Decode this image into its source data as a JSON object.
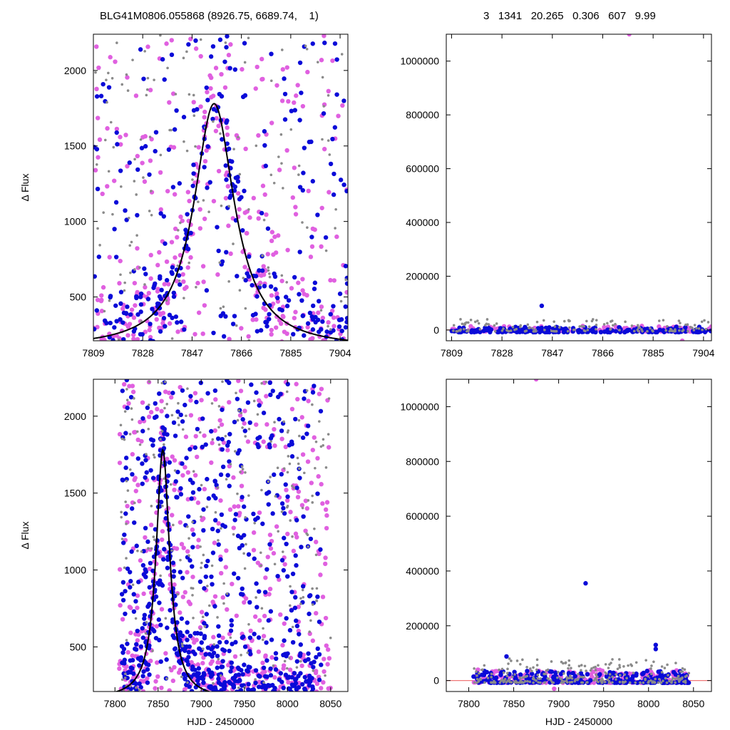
{
  "header": {
    "left_text": "BLG41M0806.055868 (8926.75, 6689.74,    1)",
    "right_text": "3   1341   20.265   0.306   607   9.99"
  },
  "colors": {
    "series_a": "#e060e0",
    "series_b": "#0a0ad8",
    "series_c": "#8a8a8a",
    "model": "#000000",
    "zero_line": "#f07878"
  },
  "chart_data": [
    {
      "id": "top-left",
      "type": "scatter",
      "xlabel": "",
      "ylabel": "Δ Flux",
      "xlim": [
        7809,
        7907
      ],
      "ylim": [
        210,
        2240
      ],
      "x_ticks": [
        7809,
        7828,
        7847,
        7866,
        7885,
        7904
      ],
      "y_ticks": [
        500,
        1000,
        1500,
        2000
      ],
      "grid": false,
      "model_curve": {
        "peak_time": 7855.5,
        "peak_flux": 1780,
        "time_scale": 9.5,
        "baseline": 160
      },
      "series": [
        {
          "color_key": "series_a",
          "cluster_points": [
            [
              7852,
              1780
            ],
            [
              7862,
              1620
            ],
            [
              7840,
              1000
            ],
            [
              7870,
              950
            ],
            [
              7890,
              700
            ]
          ],
          "count": 420,
          "x_range": [
            7809,
            7907
          ],
          "y_range": [
            210,
            2240
          ]
        },
        {
          "color_key": "series_b",
          "cluster_points": [
            [
              7856,
              1780
            ],
            [
              7864,
              1250
            ],
            [
              7880,
              800
            ],
            [
              7895,
              600
            ],
            [
              7905,
              1100
            ]
          ],
          "count": 360,
          "x_range": [
            7809,
            7907
          ],
          "y_range": [
            210,
            2240
          ]
        },
        {
          "color_key": "series_c",
          "count": 140,
          "x_range": [
            7809,
            7907
          ],
          "y_range": [
            210,
            2240
          ]
        }
      ]
    },
    {
      "id": "top-right",
      "type": "scatter",
      "xlabel": "",
      "ylabel": "",
      "xlim": [
        7807,
        7907
      ],
      "ylim": [
        -40000,
        1100000
      ],
      "x_ticks": [
        7809,
        7828,
        7847,
        7866,
        7885,
        7904
      ],
      "y_ticks": [
        0,
        200000,
        400000,
        600000,
        800000,
        1000000
      ],
      "grid": false,
      "highlight_points": [
        [
          7843,
          90000,
          "series_b"
        ],
        [
          7876,
          1100000,
          "series_a"
        ],
        [
          7896,
          -40000,
          "series_a"
        ]
      ],
      "series": [
        {
          "color_key": "series_a",
          "count": 160,
          "x_range": [
            7809,
            7907
          ],
          "y_range": [
            -5000,
            15000
          ]
        },
        {
          "color_key": "series_b",
          "count": 200,
          "x_range": [
            7809,
            7907
          ],
          "y_range": [
            -8000,
            12000
          ]
        },
        {
          "color_key": "series_c",
          "count": 140,
          "x_range": [
            7809,
            7907
          ],
          "y_range": [
            -5000,
            40000
          ]
        }
      ]
    },
    {
      "id": "bottom-left",
      "type": "scatter",
      "xlabel": "HJD - 2450000",
      "ylabel": "Δ Flux",
      "xlim": [
        7775,
        8070
      ],
      "ylim": [
        210,
        2240
      ],
      "x_ticks": [
        7800,
        7850,
        7900,
        7950,
        8000,
        8050
      ],
      "y_ticks": [
        500,
        1000,
        1500,
        2000
      ],
      "grid": false,
      "model_curve": {
        "peak_time": 7855.5,
        "peak_flux": 1780,
        "time_scale": 9.5,
        "baseline": 160
      },
      "series": [
        {
          "color_key": "series_a",
          "count": 750,
          "x_range": [
            7805,
            8050
          ],
          "y_range": [
            210,
            2240
          ]
        },
        {
          "color_key": "series_b",
          "count": 900,
          "x_range": [
            7808,
            8040
          ],
          "y_range": [
            210,
            2240
          ]
        },
        {
          "color_key": "series_c",
          "count": 240,
          "x_range": [
            7805,
            8050
          ],
          "y_range": [
            210,
            2240
          ]
        }
      ]
    },
    {
      "id": "bottom-right",
      "type": "scatter",
      "xlabel": "HJD - 2450000",
      "ylabel": "",
      "xlim": [
        7775,
        8070
      ],
      "ylim": [
        -40000,
        1100000
      ],
      "x_ticks": [
        7800,
        7850,
        7900,
        7950,
        8000,
        8050
      ],
      "y_ticks": [
        0,
        200000,
        400000,
        600000,
        800000,
        1000000
      ],
      "grid": false,
      "highlight_points": [
        [
          7930,
          355000,
          "series_b"
        ],
        [
          7875,
          1100000,
          "series_a"
        ],
        [
          7842,
          88000,
          "series_b"
        ],
        [
          8008,
          130000,
          "series_b"
        ],
        [
          8008,
          115000,
          "series_b"
        ],
        [
          7895,
          -30000,
          "series_a"
        ]
      ],
      "series": [
        {
          "color_key": "series_a",
          "count": 220,
          "x_range": [
            7805,
            8045
          ],
          "y_range": [
            -8000,
            40000
          ]
        },
        {
          "color_key": "series_b",
          "count": 260,
          "x_range": [
            7805,
            8045
          ],
          "y_range": [
            -8000,
            35000
          ]
        },
        {
          "color_key": "series_c",
          "count": 260,
          "x_range": [
            7805,
            8045
          ],
          "y_range": [
            -8000,
            80000
          ]
        }
      ]
    }
  ]
}
